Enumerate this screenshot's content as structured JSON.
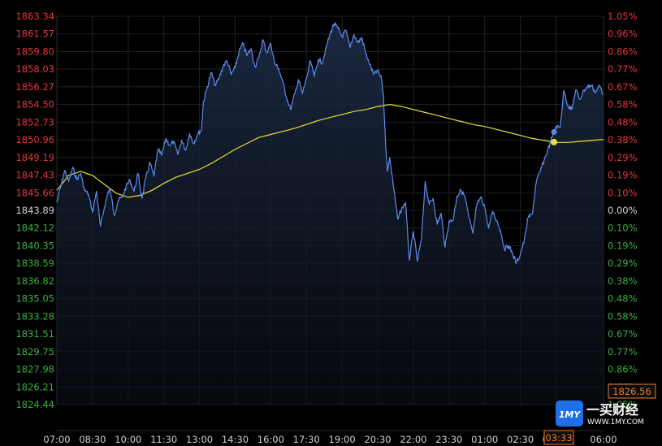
{
  "chart_data": {
    "type": "line",
    "title": "",
    "xlabel": "",
    "ylabel": "",
    "base_price": 1843.89,
    "ylim": [
      1824.44,
      1863.34
    ],
    "y_ticks_left": [
      "1863.34",
      "1861.57",
      "1859.80",
      "1858.03",
      "1856.27",
      "1854.50",
      "1852.73",
      "1850.96",
      "1849.19",
      "1847.43",
      "1845.66",
      "1843.89",
      "1842.12",
      "1840.35",
      "1838.59",
      "1836.82",
      "1835.05",
      "1833.28",
      "1831.51",
      "1829.75",
      "1827.98",
      "1826.21",
      "1824.44"
    ],
    "y_ticks_right": [
      "1.05%",
      "0.96%",
      "0.86%",
      "0.77%",
      "0.67%",
      "0.58%",
      "0.48%",
      "0.38%",
      "0.29%",
      "0.19%",
      "0.10%",
      "0.00%",
      "0.10%",
      "0.19%",
      "0.29%",
      "0.38%",
      "0.48%",
      "0.58%",
      "0.67%",
      "0.77%",
      "0.86%",
      "0.96%",
      "1.05%"
    ],
    "x_ticks": [
      "07:00",
      "08:30",
      "10:00",
      "11:30",
      "13:00",
      "14:30",
      "16:00",
      "17:30",
      "19:00",
      "20:30",
      "22:00",
      "23:30",
      "01:00",
      "02:30",
      "04:00",
      "06:00"
    ],
    "x_tick_slots": [
      0,
      18,
      36,
      54,
      72,
      90,
      108,
      126,
      144,
      162,
      180,
      198,
      216,
      234,
      252,
      276
    ],
    "total_slots": 276,
    "grid": true,
    "colors": {
      "up": "#e8343b",
      "down": "#3cb043",
      "neutral": "#d6d6d6",
      "price_line": "#5b8def",
      "avg_line": "#e8e030",
      "grid": "#1f2126",
      "background": "#000000"
    },
    "series": [
      {
        "role": "price",
        "x": [
          0,
          2,
          4,
          6,
          8,
          10,
          12,
          14,
          16,
          18,
          20,
          22,
          24,
          26,
          27,
          29,
          31,
          33,
          35,
          37,
          39,
          41,
          43,
          45,
          47,
          49,
          51,
          53,
          55,
          57,
          59,
          61,
          63,
          65,
          67,
          69,
          71,
          73,
          74,
          76,
          78,
          80,
          82,
          84,
          86,
          88,
          90,
          92,
          94,
          96,
          98,
          100,
          102,
          104,
          106,
          108,
          110,
          112,
          114,
          116,
          118,
          120,
          122,
          124,
          126,
          128,
          130,
          132,
          134,
          136,
          138,
          140,
          142,
          144,
          146,
          148,
          150,
          152,
          154,
          156,
          158,
          160,
          162,
          164,
          165,
          166,
          167,
          168,
          170,
          172,
          174,
          176,
          178,
          180,
          182,
          184,
          186,
          188,
          190,
          192,
          194,
          196,
          198,
          200,
          202,
          204,
          206,
          208,
          210,
          212,
          214,
          216,
          218,
          220,
          222,
          224,
          226,
          228,
          230,
          232,
          234,
          236,
          238,
          240,
          242,
          244,
          246,
          248,
          250,
          252,
          254,
          256,
          258,
          260,
          262,
          264,
          266,
          268,
          270,
          272,
          274,
          276
        ],
        "y": [
          1844.7,
          1846.3,
          1847.9,
          1846.8,
          1848.2,
          1847.0,
          1847.6,
          1845.9,
          1845.5,
          1843.7,
          1845.8,
          1842.3,
          1844.2,
          1845.8,
          1845.9,
          1843.4,
          1844.9,
          1845.2,
          1846.3,
          1846.9,
          1845.8,
          1847.6,
          1845.1,
          1847.2,
          1848.7,
          1847.3,
          1850.0,
          1849.4,
          1851.1,
          1850.4,
          1850.8,
          1849.5,
          1850.9,
          1849.9,
          1851.6,
          1850.6,
          1851.5,
          1852.0,
          1854.8,
          1856.3,
          1857.7,
          1856.4,
          1857.2,
          1858.4,
          1858.9,
          1857.5,
          1858.2,
          1859.8,
          1860.6,
          1859.4,
          1860.1,
          1858.3,
          1859.2,
          1861.0,
          1859.7,
          1860.6,
          1858.6,
          1858.1,
          1856.8,
          1855.2,
          1854.0,
          1855.5,
          1857.0,
          1855.6,
          1857.1,
          1858.9,
          1857.3,
          1859.0,
          1858.7,
          1860.2,
          1861.6,
          1862.6,
          1862.1,
          1861.3,
          1861.9,
          1860.2,
          1861.5,
          1860.7,
          1861.2,
          1859.6,
          1858.5,
          1857.5,
          1857.9,
          1857.0,
          1855.1,
          1850.3,
          1847.8,
          1849.2,
          1846.2,
          1843.1,
          1844.0,
          1844.7,
          1838.9,
          1841.8,
          1838.8,
          1840.9,
          1846.8,
          1844.5,
          1845.1,
          1842.5,
          1843.6,
          1840.2,
          1842.8,
          1842.9,
          1845.3,
          1845.9,
          1845.3,
          1843.2,
          1841.6,
          1844.4,
          1845.2,
          1844.3,
          1842.1,
          1843.8,
          1842.9,
          1841.9,
          1840.0,
          1840.4,
          1839.6,
          1838.6,
          1839.5,
          1840.9,
          1843.2,
          1843.5,
          1846.7,
          1847.8,
          1848.9,
          1850.0,
          1851.2,
          1852.3,
          1852.2,
          1855.9,
          1854.4,
          1854.0,
          1856.0,
          1855.0,
          1855.9,
          1856.3,
          1856.4,
          1855.7,
          1856.4,
          1855.5
        ]
      },
      {
        "role": "average",
        "x": [
          0,
          6,
          12,
          18,
          24,
          30,
          36,
          42,
          48,
          54,
          60,
          66,
          72,
          78,
          84,
          90,
          96,
          102,
          108,
          114,
          120,
          126,
          132,
          138,
          144,
          150,
          156,
          162,
          168,
          174,
          180,
          186,
          192,
          198,
          204,
          210,
          216,
          222,
          228,
          234,
          240,
          246,
          252,
          258,
          264,
          270,
          276
        ],
        "y": [
          1845.9,
          1847.4,
          1847.8,
          1847.4,
          1846.5,
          1845.6,
          1845.2,
          1845.4,
          1845.9,
          1846.6,
          1847.2,
          1847.6,
          1848.0,
          1848.6,
          1849.3,
          1850.0,
          1850.6,
          1851.2,
          1851.5,
          1851.8,
          1852.1,
          1852.5,
          1852.9,
          1853.2,
          1853.5,
          1853.8,
          1854.0,
          1854.3,
          1854.5,
          1854.3,
          1854.0,
          1853.7,
          1853.4,
          1853.1,
          1852.8,
          1852.5,
          1852.3,
          1852.0,
          1851.7,
          1851.4,
          1851.1,
          1850.9,
          1850.7,
          1850.7,
          1850.8,
          1850.9,
          1851.0
        ]
      }
    ],
    "current_price_label": "1826.56",
    "current_time_label": "03:33"
  },
  "watermark": {
    "badge_text": "1MY",
    "name": "一买财经",
    "url": "WWW.1MY.COM"
  }
}
